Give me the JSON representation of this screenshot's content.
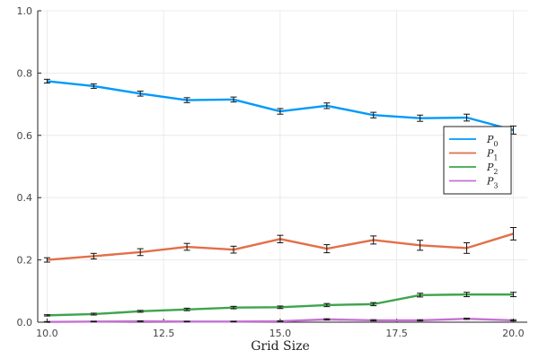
{
  "chart_data": {
    "type": "line",
    "xlabel": "Grid Size",
    "ylabel": "",
    "xlim": [
      9.8,
      20.3
    ],
    "ylim": [
      0,
      1
    ],
    "xticks": [
      10.0,
      12.5,
      15.0,
      17.5,
      20.0
    ],
    "xtick_labels": [
      "10.0",
      "12.5",
      "15.0",
      "17.5",
      "20.0"
    ],
    "yticks": [
      0,
      0.2,
      0.4,
      0.6,
      0.8,
      1.0
    ],
    "ytick_labels": [
      "0.0",
      "0.2",
      "0.4",
      "0.6",
      "0.8",
      "1.0"
    ],
    "grid": true,
    "legend_position": "right",
    "x": [
      10,
      11,
      12,
      13,
      14,
      15,
      16,
      17,
      18,
      19,
      20
    ],
    "series": [
      {
        "name": "P",
        "subscript": "0",
        "color": "#009AFA",
        "values": [
          0.774,
          0.758,
          0.734,
          0.713,
          0.715,
          0.677,
          0.695,
          0.665,
          0.655,
          0.657,
          0.617
        ],
        "errors": [
          0.006,
          0.007,
          0.008,
          0.008,
          0.008,
          0.009,
          0.009,
          0.009,
          0.01,
          0.011,
          0.013
        ]
      },
      {
        "name": "P",
        "subscript": "1",
        "color": "#E36F47",
        "values": [
          0.2,
          0.212,
          0.225,
          0.242,
          0.233,
          0.267,
          0.236,
          0.264,
          0.247,
          0.238,
          0.284
        ],
        "errors": [
          0.007,
          0.009,
          0.011,
          0.011,
          0.011,
          0.012,
          0.013,
          0.013,
          0.016,
          0.017,
          0.02
        ]
      },
      {
        "name": "P",
        "subscript": "2",
        "color": "#3EA44E",
        "values": [
          0.022,
          0.026,
          0.035,
          0.041,
          0.047,
          0.048,
          0.055,
          0.058,
          0.087,
          0.089,
          0.089
        ],
        "errors": [
          0.002,
          0.003,
          0.003,
          0.004,
          0.004,
          0.004,
          0.005,
          0.005,
          0.006,
          0.007,
          0.007
        ]
      },
      {
        "name": "P",
        "subscript": "3",
        "color": "#C371D2",
        "values": [
          0.001,
          0.002,
          0.003,
          0.002,
          0.002,
          0.003,
          0.009,
          0.006,
          0.006,
          0.011,
          0.006
        ],
        "errors": [
          0.001,
          0.001,
          0.001,
          0.001,
          0.001,
          0.001,
          0.002,
          0.002,
          0.002,
          0.002,
          0.002
        ]
      }
    ]
  }
}
